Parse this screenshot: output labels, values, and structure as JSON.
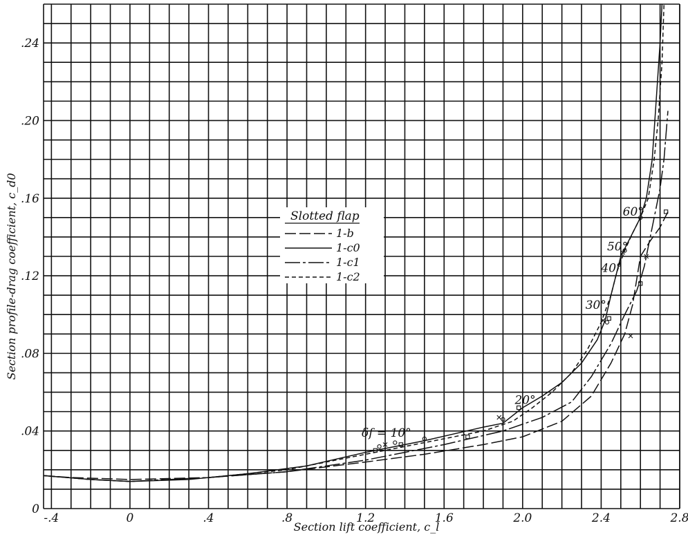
{
  "chart_data": {
    "type": "line",
    "xlabel": "Section lift coefficient, c_l",
    "ylabel": "Section profile-drag coefficient, c_d0",
    "xlim": [
      -0.44,
      2.8
    ],
    "ylim": [
      0,
      0.26
    ],
    "x_ticks": [
      {
        "value": -0.4,
        "label": "-.4"
      },
      {
        "value": 0,
        "label": "0"
      },
      {
        "value": 0.4,
        "label": ".4"
      },
      {
        "value": 0.8,
        "label": ".8"
      },
      {
        "value": 1.2,
        "label": "1.2"
      },
      {
        "value": 1.6,
        "label": "1.6"
      },
      {
        "value": 2.0,
        "label": "2.0"
      },
      {
        "value": 2.4,
        "label": "2.4"
      },
      {
        "value": 2.8,
        "label": "2.8"
      }
    ],
    "y_ticks": [
      {
        "value": 0,
        "label": "0"
      },
      {
        "value": 0.04,
        "label": ".04"
      },
      {
        "value": 0.08,
        "label": ".08"
      },
      {
        "value": 0.12,
        "label": ".12"
      },
      {
        "value": 0.16,
        "label": ".16"
      },
      {
        "value": 0.2,
        "label": ".20"
      },
      {
        "value": 0.24,
        "label": ".24"
      }
    ],
    "grid": "on",
    "legend": {
      "title": "Slotted flap",
      "placement": "center-left",
      "entries": [
        "1-b",
        "1-c0",
        "1-c1",
        "1-c2"
      ]
    },
    "series": [
      {
        "name": "1-b",
        "style": "long-dash",
        "points": [
          [
            -0.44,
            0.017
          ],
          [
            -0.3,
            0.016
          ],
          [
            0,
            0.015
          ],
          [
            0.4,
            0.016
          ],
          [
            0.8,
            0.019
          ],
          [
            1.2,
            0.024
          ],
          [
            1.5,
            0.028
          ],
          [
            1.8,
            0.033
          ],
          [
            2.0,
            0.037
          ],
          [
            2.2,
            0.045
          ],
          [
            2.35,
            0.058
          ],
          [
            2.45,
            0.075
          ],
          [
            2.52,
            0.09
          ],
          [
            2.56,
            0.105
          ],
          [
            2.6,
            0.13
          ],
          [
            2.65,
            0.138
          ],
          [
            2.7,
            0.145
          ],
          [
            2.74,
            0.153
          ]
        ]
      },
      {
        "name": "1-c0",
        "style": "solid",
        "points": [
          [
            -0.44,
            0.017
          ],
          [
            -0.2,
            0.015
          ],
          [
            0,
            0.014
          ],
          [
            0.3,
            0.015
          ],
          [
            0.6,
            0.018
          ],
          [
            0.9,
            0.022
          ],
          [
            1.2,
            0.029
          ],
          [
            1.5,
            0.035
          ],
          [
            1.8,
            0.042
          ],
          [
            1.9,
            0.044
          ],
          [
            2.0,
            0.052
          ],
          [
            2.1,
            0.058
          ],
          [
            2.2,
            0.065
          ],
          [
            2.3,
            0.075
          ],
          [
            2.38,
            0.087
          ],
          [
            2.42,
            0.097
          ],
          [
            2.45,
            0.11
          ],
          [
            2.48,
            0.122
          ],
          [
            2.5,
            0.13
          ],
          [
            2.55,
            0.14
          ],
          [
            2.6,
            0.15
          ],
          [
            2.63,
            0.16
          ],
          [
            2.66,
            0.18
          ],
          [
            2.68,
            0.21
          ],
          [
            2.7,
            0.24
          ],
          [
            2.71,
            0.26
          ]
        ]
      },
      {
        "name": "1-c1",
        "style": "long-short-dash",
        "points": [
          [
            -0.44,
            0.017
          ],
          [
            -0.2,
            0.015
          ],
          [
            0,
            0.014
          ],
          [
            0.4,
            0.016
          ],
          [
            0.8,
            0.019
          ],
          [
            1.2,
            0.025
          ],
          [
            1.6,
            0.033
          ],
          [
            1.9,
            0.04
          ],
          [
            2.1,
            0.047
          ],
          [
            2.25,
            0.055
          ],
          [
            2.35,
            0.068
          ],
          [
            2.45,
            0.085
          ],
          [
            2.52,
            0.1
          ],
          [
            2.58,
            0.112
          ],
          [
            2.6,
            0.118
          ],
          [
            2.62,
            0.125
          ],
          [
            2.67,
            0.15
          ],
          [
            2.7,
            0.165
          ],
          [
            2.72,
            0.18
          ],
          [
            2.74,
            0.205
          ]
        ]
      },
      {
        "name": "1-c2",
        "style": "short-dash",
        "points": [
          [
            -0.44,
            0.017
          ],
          [
            -0.2,
            0.015
          ],
          [
            0,
            0.014
          ],
          [
            0.4,
            0.016
          ],
          [
            0.8,
            0.02
          ],
          [
            1.2,
            0.028
          ],
          [
            1.5,
            0.034
          ],
          [
            1.8,
            0.04
          ],
          [
            1.95,
            0.045
          ],
          [
            2.05,
            0.052
          ],
          [
            2.15,
            0.06
          ],
          [
            2.25,
            0.07
          ],
          [
            2.33,
            0.082
          ],
          [
            2.4,
            0.096
          ],
          [
            2.45,
            0.11
          ],
          [
            2.48,
            0.122
          ],
          [
            2.52,
            0.133
          ],
          [
            2.56,
            0.142
          ],
          [
            2.6,
            0.15
          ],
          [
            2.64,
            0.16
          ],
          [
            2.67,
            0.18
          ],
          [
            2.69,
            0.2
          ],
          [
            2.71,
            0.23
          ],
          [
            2.72,
            0.26
          ]
        ]
      }
    ],
    "markers": [
      {
        "shape": "circle",
        "points": [
          [
            1.27,
            0.032
          ],
          [
            1.35,
            0.034
          ],
          [
            1.5,
            0.036
          ],
          [
            1.9,
            0.046
          ],
          [
            2.43,
            0.096
          ],
          [
            2.52,
            0.133
          ],
          [
            2.6,
            0.15
          ]
        ]
      },
      {
        "shape": "square",
        "points": [
          [
            1.25,
            0.03
          ],
          [
            1.38,
            0.033
          ],
          [
            1.72,
            0.037
          ],
          [
            1.98,
            0.052
          ],
          [
            2.44,
            0.098
          ],
          [
            2.6,
            0.116
          ],
          [
            2.73,
            0.153
          ]
        ]
      },
      {
        "shape": "cross",
        "points": [
          [
            1.3,
            0.033
          ],
          [
            1.88,
            0.047
          ],
          [
            2.41,
            0.097
          ],
          [
            2.51,
            0.132
          ],
          [
            2.55,
            0.089
          ],
          [
            2.63,
            0.13
          ]
        ]
      }
    ],
    "annotations": [
      {
        "text": "δf = 10°",
        "x": 1.18,
        "y": 0.037
      },
      {
        "text": "20°",
        "x": 1.96,
        "y": 0.054
      },
      {
        "text": "30°",
        "x": 2.32,
        "y": 0.103
      },
      {
        "text": "40°",
        "x": 2.4,
        "y": 0.122
      },
      {
        "text": "50°",
        "x": 2.43,
        "y": 0.133
      },
      {
        "text": "60°",
        "x": 2.51,
        "y": 0.151
      }
    ]
  }
}
